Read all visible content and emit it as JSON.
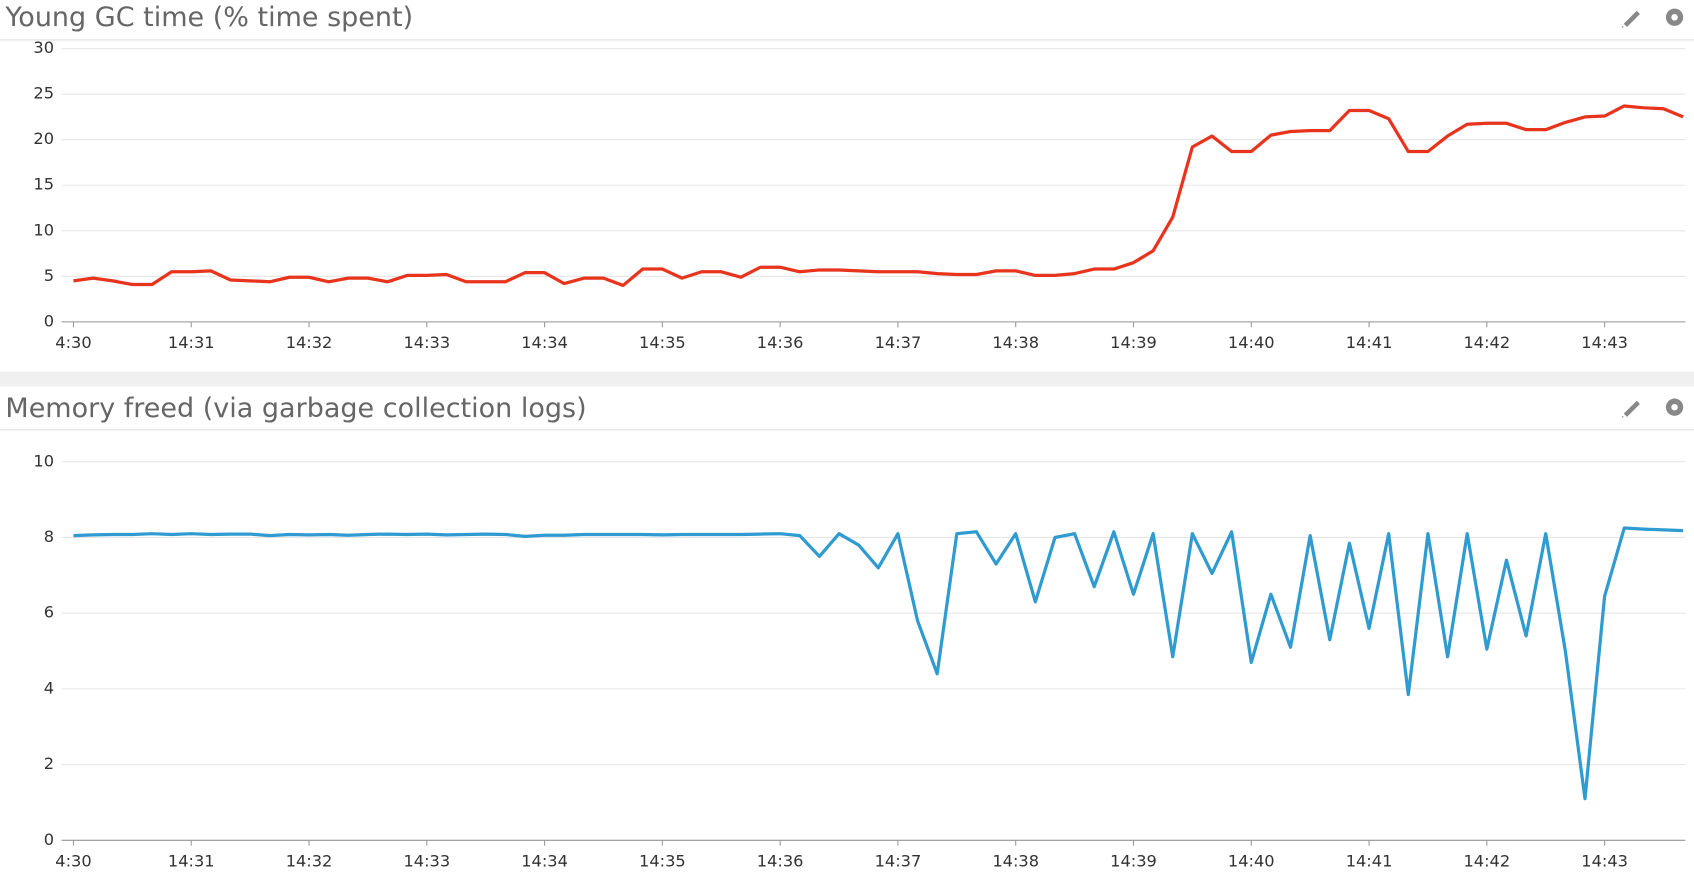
{
  "chart_data": [
    {
      "type": "line",
      "title": "Young GC time (% time spent)",
      "categories": [
        "4:30",
        null,
        null,
        null,
        null,
        null,
        "14:31",
        null,
        null,
        null,
        null,
        null,
        "14:32",
        null,
        null,
        null,
        null,
        null,
        "14:33",
        null,
        null,
        null,
        null,
        null,
        "14:34",
        null,
        null,
        null,
        null,
        null,
        "14:35",
        null,
        null,
        null,
        null,
        null,
        "14:36",
        null,
        null,
        null,
        null,
        null,
        "14:37",
        null,
        null,
        null,
        null,
        null,
        "14:38",
        null,
        null,
        null,
        null,
        null,
        "14:39",
        null,
        null,
        null,
        null,
        null,
        "14:40",
        null,
        null,
        null,
        null,
        null,
        "14:41",
        null,
        null,
        null,
        null,
        null,
        "14:42",
        null,
        null,
        null,
        null,
        null,
        "14:43",
        null,
        null,
        null,
        null
      ],
      "series": [
        {
          "name": "Young GC time",
          "color": "#e8341c",
          "values": [
            4.5,
            4.8,
            4.5,
            4.1,
            4.1,
            5.5,
            5.5,
            5.6,
            4.6,
            4.5,
            4.4,
            4.9,
            4.9,
            4.4,
            4.8,
            4.8,
            4.4,
            5.1,
            5.1,
            5.2,
            4.4,
            4.4,
            4.4,
            5.4,
            5.4,
            4.2,
            4.8,
            4.8,
            4.0,
            5.8,
            5.8,
            4.8,
            5.5,
            5.5,
            4.9,
            6.0,
            6.0,
            5.5,
            5.7,
            5.7,
            5.6,
            5.5,
            5.5,
            5.5,
            5.3,
            5.2,
            5.2,
            5.6,
            5.6,
            5.1,
            5.1,
            5.3,
            5.8,
            5.8,
            6.5,
            7.8,
            11.5,
            19.2,
            20.4,
            18.7,
            18.7,
            20.5,
            20.9,
            21.0,
            21.0,
            23.2,
            23.2,
            22.3,
            18.7,
            18.7,
            20.4,
            21.7,
            21.8,
            21.8,
            21.1,
            21.1,
            21.9,
            22.5,
            22.6,
            23.7,
            23.5,
            23.4,
            22.5
          ]
        }
      ],
      "ylim": [
        0,
        30
      ],
      "yticks": [
        0,
        5,
        10,
        15,
        20,
        25,
        30
      ],
      "grid": true
    },
    {
      "type": "line",
      "title": "Memory freed (via garbage collection logs)",
      "categories": [
        "4:30",
        null,
        null,
        null,
        null,
        null,
        "14:31",
        null,
        null,
        null,
        null,
        null,
        "14:32",
        null,
        null,
        null,
        null,
        null,
        "14:33",
        null,
        null,
        null,
        null,
        null,
        "14:34",
        null,
        null,
        null,
        null,
        null,
        "14:35",
        null,
        null,
        null,
        null,
        null,
        "14:36",
        null,
        null,
        null,
        null,
        null,
        "14:37",
        null,
        null,
        null,
        null,
        null,
        "14:38",
        null,
        null,
        null,
        null,
        null,
        "14:39",
        null,
        null,
        null,
        null,
        null,
        "14:40",
        null,
        null,
        null,
        null,
        null,
        "14:41",
        null,
        null,
        null,
        null,
        null,
        "14:42",
        null,
        null,
        null,
        null,
        null,
        "14:43",
        null,
        null,
        null,
        null
      ],
      "series": [
        {
          "name": "Memory freed",
          "color": "#2f9bd0",
          "values": [
            8.05,
            8.07,
            8.08,
            8.08,
            8.1,
            8.08,
            8.1,
            8.08,
            8.09,
            8.09,
            8.05,
            8.08,
            8.07,
            8.08,
            8.06,
            8.08,
            8.09,
            8.08,
            8.09,
            8.07,
            8.08,
            8.09,
            8.08,
            8.03,
            8.06,
            8.06,
            8.08,
            8.08,
            8.08,
            8.08,
            8.07,
            8.08,
            8.08,
            8.08,
            8.08,
            8.09,
            8.1,
            8.05,
            7.5,
            8.1,
            7.8,
            7.2,
            8.1,
            5.8,
            4.4,
            8.1,
            8.15,
            7.3,
            8.1,
            6.3,
            8.0,
            8.1,
            6.7,
            8.15,
            6.5,
            8.1,
            4.85,
            8.1,
            7.05,
            8.15,
            4.7,
            6.5,
            5.1,
            8.05,
            5.3,
            7.85,
            5.6,
            8.1,
            3.85,
            8.1,
            4.85,
            8.1,
            5.05,
            7.4,
            5.4,
            8.1,
            5.0,
            1.1,
            6.45,
            8.25,
            8.22,
            8.2,
            8.18
          ]
        }
      ],
      "ylim": [
        0,
        10.5
      ],
      "yticks": [
        0,
        2,
        4,
        6,
        8,
        10
      ],
      "grid": true
    }
  ]
}
